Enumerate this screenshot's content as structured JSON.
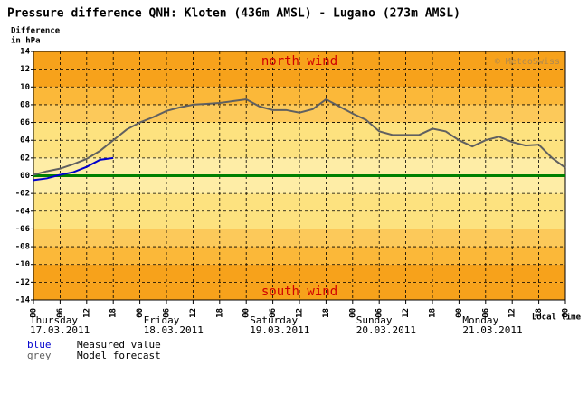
{
  "chart_data": {
    "type": "line",
    "title": "Pressure difference QNH: Kloten (436m AMSL) - Lugano (273m AMSL)",
    "y_label_line1": "Difference",
    "y_label_line2": "in hPa",
    "annotations": [
      "north wind",
      "south wind",
      "© MeteoSwiss"
    ],
    "x_unit_label": "Local time",
    "days": [
      {
        "name": "Thursday",
        "date": "17.03.2011",
        "x": 0
      },
      {
        "name": "Friday",
        "date": "18.03.2011",
        "x": 24
      },
      {
        "name": "Saturday",
        "date": "19.03.2011",
        "x": 48
      },
      {
        "name": "Sunday",
        "date": "20.03.2011",
        "x": 72
      },
      {
        "name": "Monday",
        "date": "21.03.2011",
        "x": 96
      }
    ],
    "xlim": [
      0,
      120
    ],
    "xticks": [
      {
        "value": 0,
        "label": "00"
      },
      {
        "value": 6,
        "label": "06"
      },
      {
        "value": 12,
        "label": "12"
      },
      {
        "value": 18,
        "label": "18"
      },
      {
        "value": 24,
        "label": "00"
      },
      {
        "value": 30,
        "label": "06"
      },
      {
        "value": 36,
        "label": "12"
      },
      {
        "value": 42,
        "label": "18"
      },
      {
        "value": 48,
        "label": "00"
      },
      {
        "value": 54,
        "label": "06"
      },
      {
        "value": 60,
        "label": "12"
      },
      {
        "value": 66,
        "label": "18"
      },
      {
        "value": 72,
        "label": "00"
      },
      {
        "value": 78,
        "label": "06"
      },
      {
        "value": 84,
        "label": "12"
      },
      {
        "value": 90,
        "label": "18"
      },
      {
        "value": 96,
        "label": "00"
      },
      {
        "value": 102,
        "label": "06"
      },
      {
        "value": 108,
        "label": "12"
      },
      {
        "value": 114,
        "label": "18"
      },
      {
        "value": 120,
        "label": "00"
      }
    ],
    "ylim": [
      -14,
      14
    ],
    "yticks": [
      14,
      12,
      10,
      {
        "value": 8,
        "label": "08"
      },
      {
        "value": 6,
        "label": "06"
      },
      {
        "value": 4,
        "label": "04"
      },
      {
        "value": 2,
        "label": "02"
      },
      {
        "value": 0,
        "label": "00"
      },
      {
        "value": -2,
        "label": "-02"
      },
      {
        "value": -4,
        "label": "-04"
      },
      {
        "value": -6,
        "label": "-06"
      },
      {
        "value": -8,
        "label": "-08"
      },
      -10,
      -12,
      -14
    ],
    "grid": true,
    "series": [
      {
        "name": "Model forecast",
        "key": "grey",
        "color": "#606060",
        "x": [
          0,
          3,
          6,
          9,
          12,
          15,
          18,
          21,
          24,
          27,
          30,
          33,
          36,
          39,
          42,
          45,
          48,
          51,
          54,
          57,
          60,
          63,
          66,
          69,
          72,
          75,
          78,
          81,
          84,
          87,
          90,
          93,
          96,
          99,
          102,
          105,
          108,
          111,
          114,
          117,
          120
        ],
        "values": [
          0.1,
          0.5,
          0.8,
          1.3,
          1.9,
          2.8,
          4.0,
          5.2,
          6.0,
          6.6,
          7.3,
          7.7,
          8.0,
          8.1,
          8.2,
          8.4,
          8.6,
          7.8,
          7.4,
          7.4,
          7.1,
          7.5,
          8.6,
          7.8,
          7.0,
          6.3,
          5.0,
          4.6,
          4.6,
          4.6,
          5.3,
          5.0,
          4.0,
          3.3,
          4.0,
          4.4,
          3.8,
          3.4,
          3.5,
          2.0,
          0.9
        ]
      },
      {
        "name": "Measured value",
        "key": "blue",
        "color": "#0000cc",
        "x": [
          0,
          3,
          6,
          9,
          12,
          15,
          18
        ],
        "values": [
          -0.5,
          -0.3,
          0.1,
          0.4,
          1.0,
          1.8,
          2.0
        ]
      }
    ]
  }
}
